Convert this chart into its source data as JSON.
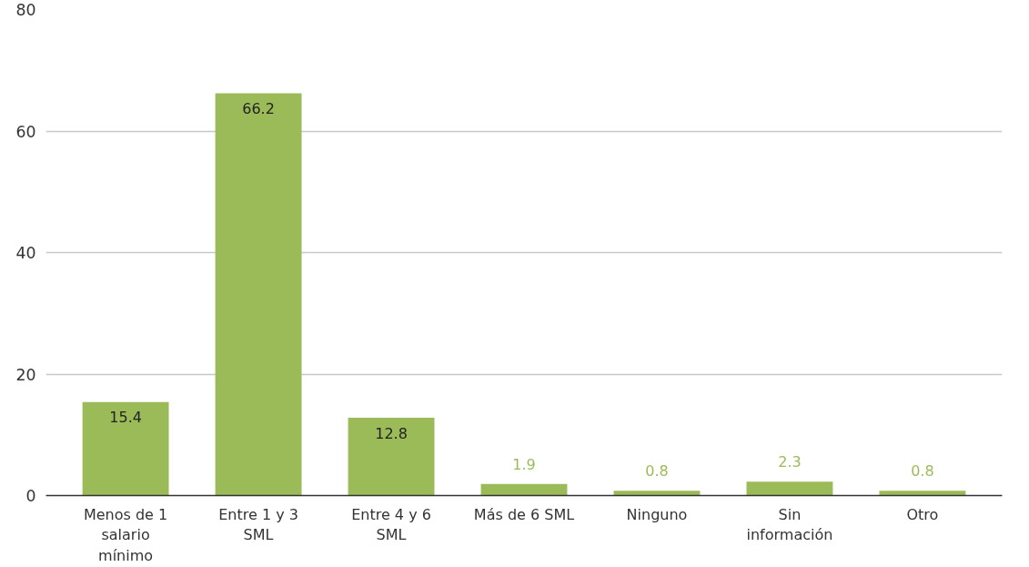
{
  "chart_data": {
    "type": "bar",
    "categories": [
      "Menos de 1 salario mínimo",
      "Entre 1 y 3 SML",
      "Entre 4 y 6 SML",
      "Más de 6 SML",
      "Ninguno",
      "Sin información",
      "Otro"
    ],
    "values": [
      15.4,
      66.2,
      12.8,
      1.9,
      0.8,
      2.3,
      0.8
    ],
    "color": "#9bbb59",
    "data_labels": true,
    "ylim": [
      0,
      80
    ],
    "yticks": [
      0,
      20,
      40,
      60,
      80
    ],
    "grid": "y"
  }
}
